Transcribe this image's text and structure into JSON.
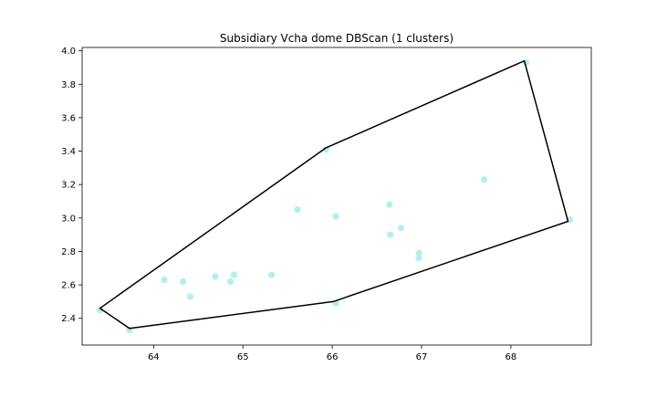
{
  "chart_data": {
    "type": "scatter",
    "title": "Subsidiary Vcha dome DBScan (1 clusters)",
    "xlabel": "",
    "ylabel": "",
    "xlim": [
      63.2,
      68.9
    ],
    "ylim": [
      2.24,
      4.02
    ],
    "x_ticks": [
      64,
      65,
      66,
      67,
      68
    ],
    "y_ticks": [
      2.4,
      2.6,
      2.8,
      3.0,
      3.2,
      3.4,
      3.6,
      3.8,
      4.0
    ],
    "grid": false,
    "point_color": "#b3eef0",
    "hull_color": "#000000",
    "points": [
      {
        "x": 63.4,
        "y": 2.45
      },
      {
        "x": 63.73,
        "y": 2.33
      },
      {
        "x": 64.12,
        "y": 2.63
      },
      {
        "x": 64.33,
        "y": 2.62
      },
      {
        "x": 64.41,
        "y": 2.53
      },
      {
        "x": 64.69,
        "y": 2.65
      },
      {
        "x": 64.86,
        "y": 2.62
      },
      {
        "x": 64.9,
        "y": 2.66
      },
      {
        "x": 65.32,
        "y": 2.66
      },
      {
        "x": 65.61,
        "y": 3.05
      },
      {
        "x": 65.93,
        "y": 3.41
      },
      {
        "x": 66.04,
        "y": 3.01
      },
      {
        "x": 66.04,
        "y": 2.49
      },
      {
        "x": 66.64,
        "y": 3.08
      },
      {
        "x": 66.65,
        "y": 2.9
      },
      {
        "x": 66.77,
        "y": 2.94
      },
      {
        "x": 66.97,
        "y": 2.79
      },
      {
        "x": 66.97,
        "y": 2.76
      },
      {
        "x": 67.7,
        "y": 3.23
      },
      {
        "x": 68.17,
        "y": 3.93
      },
      {
        "x": 68.66,
        "y": 2.99
      }
    ],
    "hull": [
      {
        "x": 63.4,
        "y": 2.46
      },
      {
        "x": 65.93,
        "y": 3.42
      },
      {
        "x": 68.15,
        "y": 3.94
      },
      {
        "x": 68.64,
        "y": 2.98
      },
      {
        "x": 66.01,
        "y": 2.5
      },
      {
        "x": 63.73,
        "y": 2.34
      }
    ]
  }
}
